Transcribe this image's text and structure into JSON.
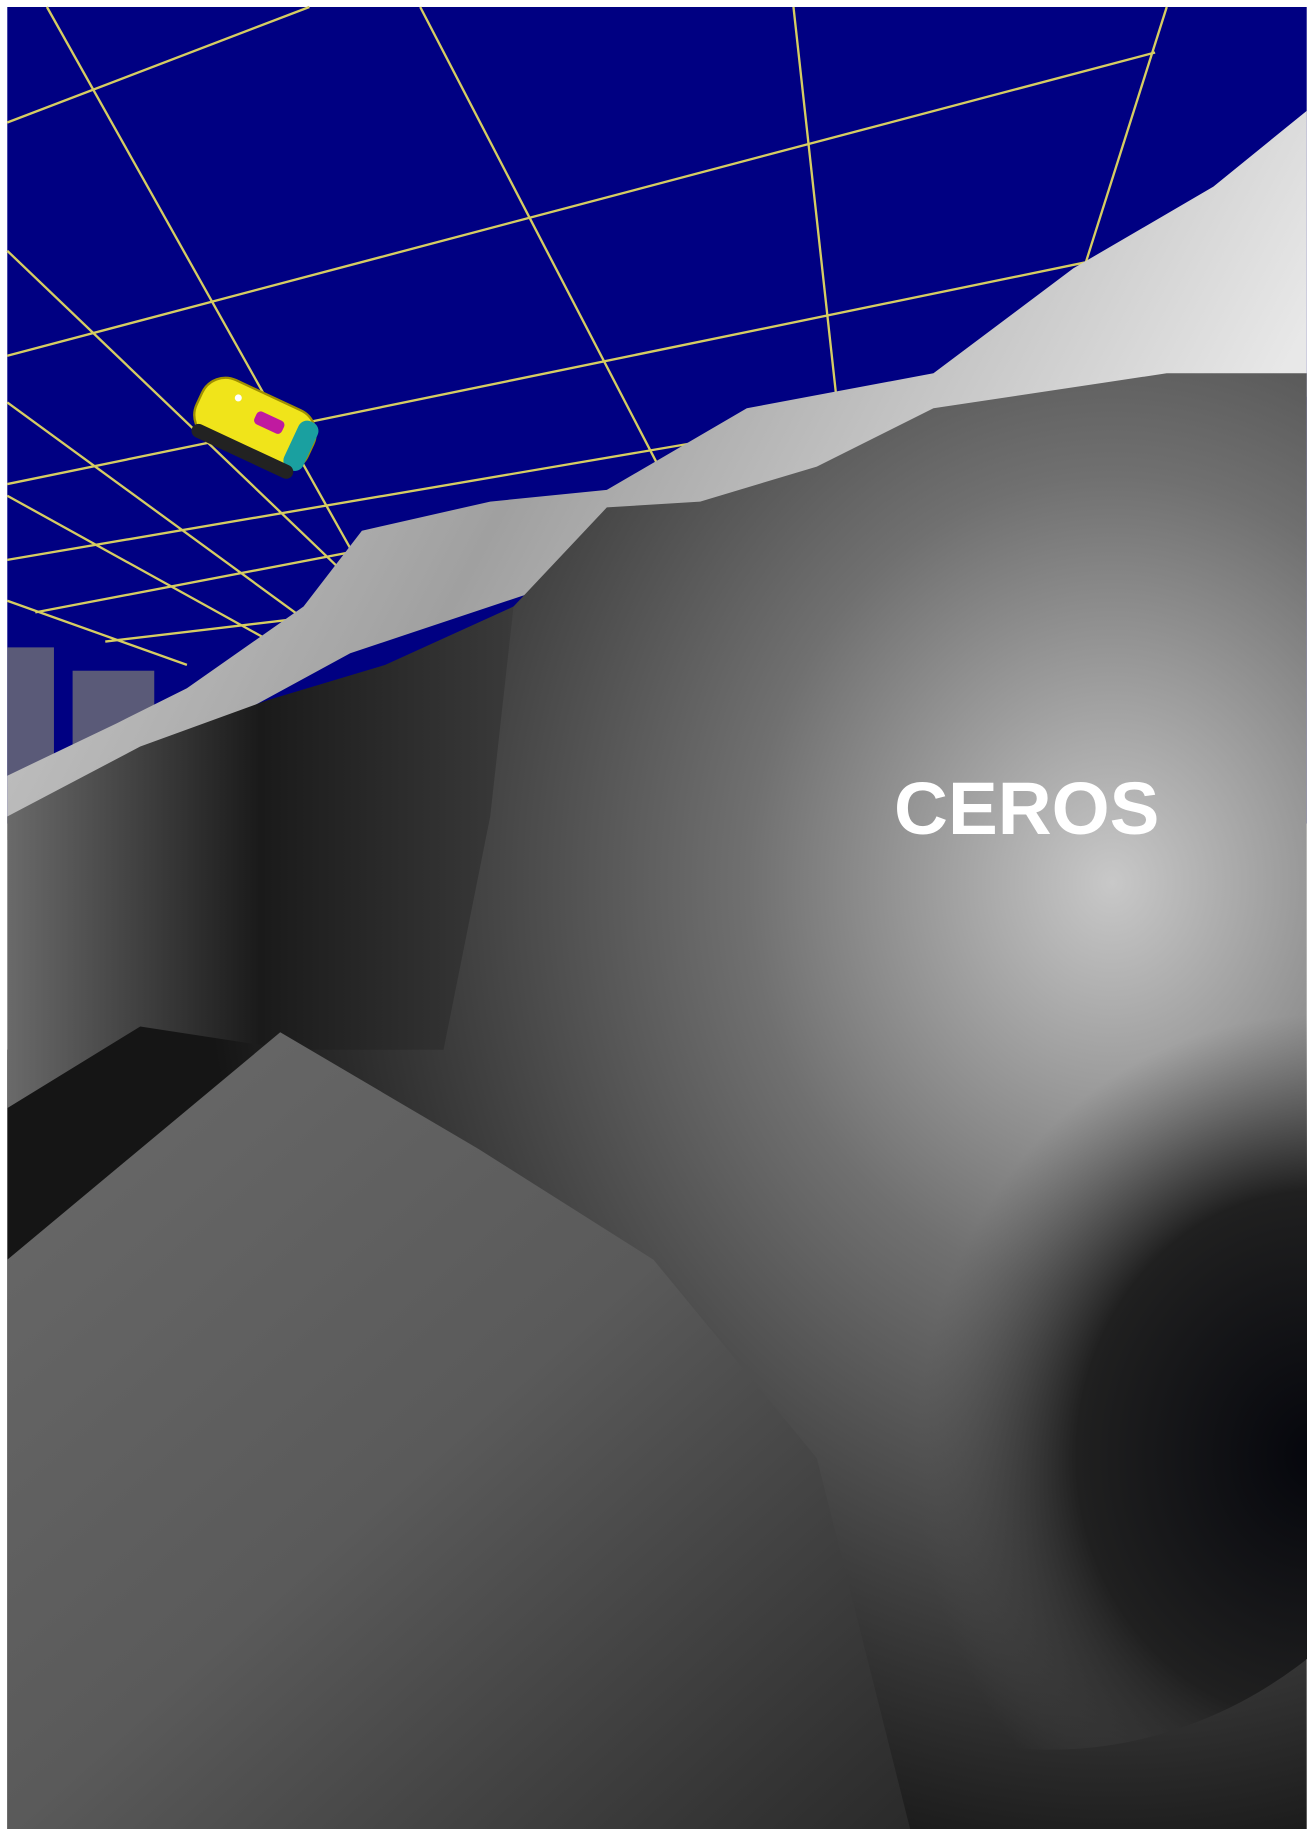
{
  "scene": {
    "label": "CEROS"
  }
}
